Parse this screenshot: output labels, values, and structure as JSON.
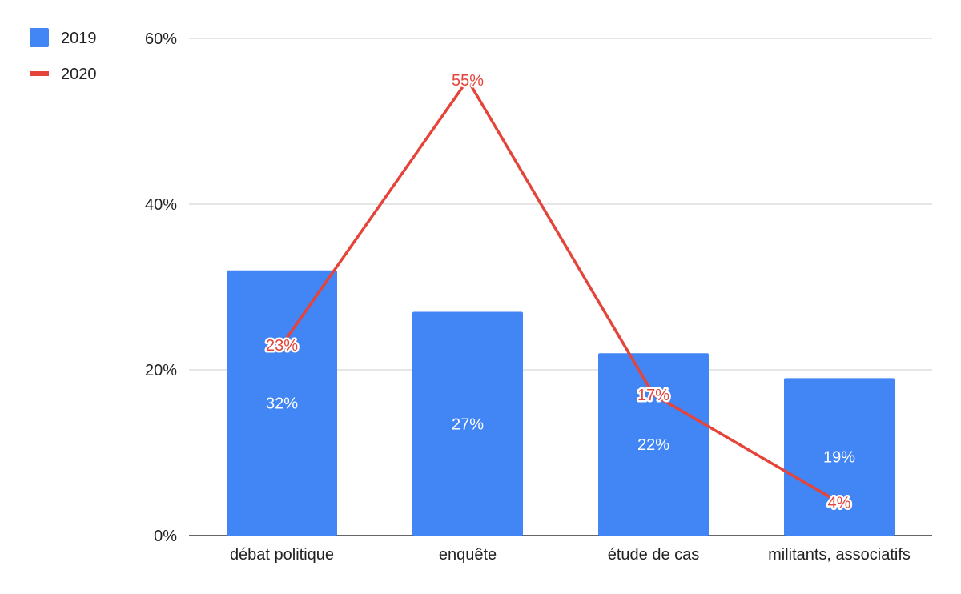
{
  "chart_data": {
    "type": "bar",
    "categories": [
      "débat politique",
      "enquête",
      "étude de cas",
      "militants, associatifs"
    ],
    "series": [
      {
        "name": "2019",
        "type": "bar",
        "color": "#4285f4",
        "values": [
          32,
          27,
          22,
          19
        ],
        "labels": [
          "32%",
          "27%",
          "22%",
          "19%"
        ]
      },
      {
        "name": "2020",
        "type": "line",
        "color": "#e5443a",
        "values": [
          23,
          55,
          17,
          4
        ],
        "labels": [
          "23%",
          "55%",
          "17%",
          "4%"
        ]
      }
    ],
    "yticks": [
      0,
      20,
      40,
      60
    ],
    "ytick_labels": [
      "0%",
      "20%",
      "40%",
      "60%"
    ],
    "ylim": [
      0,
      60
    ],
    "grid": true,
    "legend_position": "top-left"
  }
}
